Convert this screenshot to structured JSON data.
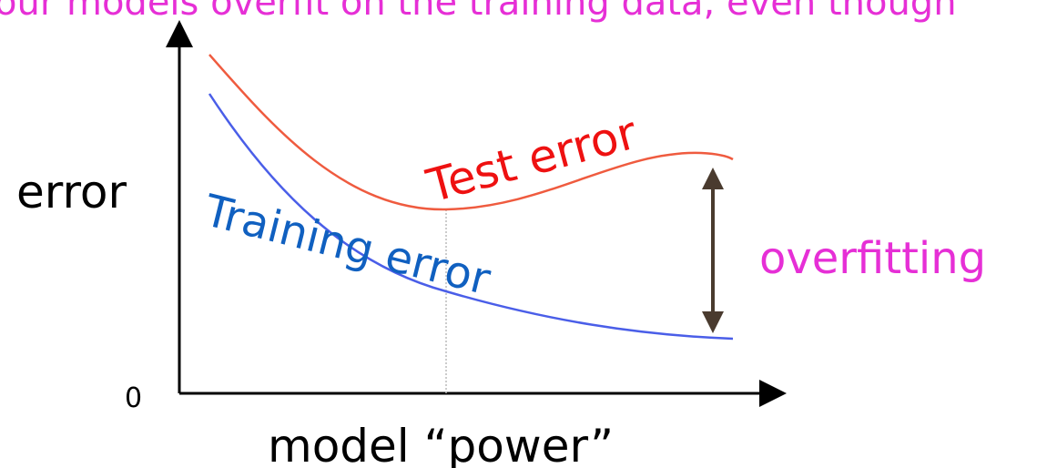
{
  "header": {
    "text": "our models overfit on the training data, even though"
  },
  "diagram": {
    "y_label": "error",
    "origin_label": "0",
    "x_label": "model “power”",
    "test_label": "Test error",
    "training_label": "Training error",
    "gap_label": "overfitting"
  }
}
